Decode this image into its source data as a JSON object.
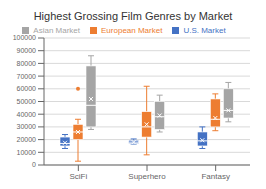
{
  "chart_data": {
    "type": "box",
    "title": "Highest Grossing Film Genres by Market",
    "categories": [
      "SciFi",
      "Superhero",
      "Fantasy"
    ],
    "ylim": [
      0,
      100000
    ],
    "yticks": [
      0,
      10000,
      20000,
      30000,
      40000,
      50000,
      60000,
      70000,
      80000,
      90000,
      100000
    ],
    "grid": true,
    "legend": "top",
    "series": [
      {
        "name": "U.S. Market",
        "color": "#4472C4",
        "values": [
          {
            "min": 13000,
            "q1": 15000,
            "med": 17000,
            "q3": 22000,
            "max": 24000,
            "mean": 17500
          },
          {
            "min": 16500,
            "q1": 17000,
            "med": 18000,
            "q3": 19500,
            "max": 20500,
            "mean": 18000
          },
          {
            "min": 13000,
            "q1": 15000,
            "med": 19000,
            "q3": 26000,
            "max": 30000,
            "mean": 19500
          }
        ]
      },
      {
        "name": "European Market",
        "color": "#ED7D31",
        "values": [
          {
            "min": 3000,
            "q1": 20000,
            "med": 26000,
            "q3": 32000,
            "max": 36000,
            "mean": 26000,
            "outlier": 60000
          },
          {
            "min": 8000,
            "q1": 22000,
            "med": 30000,
            "q3": 42000,
            "max": 62000,
            "mean": 32000
          },
          {
            "min": 27000,
            "q1": 30000,
            "med": 36000,
            "q3": 52000,
            "max": 56000,
            "mean": 37000
          }
        ]
      },
      {
        "name": "Asian Market",
        "color": "#A5A5A5",
        "values": [
          {
            "min": 28000,
            "q1": 30000,
            "med": 47000,
            "q3": 78000,
            "max": 86000,
            "mean": 52000
          },
          {
            "min": 26000,
            "q1": 28000,
            "med": 38000,
            "q3": 50000,
            "max": 55000,
            "mean": 39000
          },
          {
            "min": 34000,
            "q1": 37000,
            "med": 43000,
            "q3": 60000,
            "max": 65000,
            "mean": 43000
          }
        ]
      }
    ]
  }
}
